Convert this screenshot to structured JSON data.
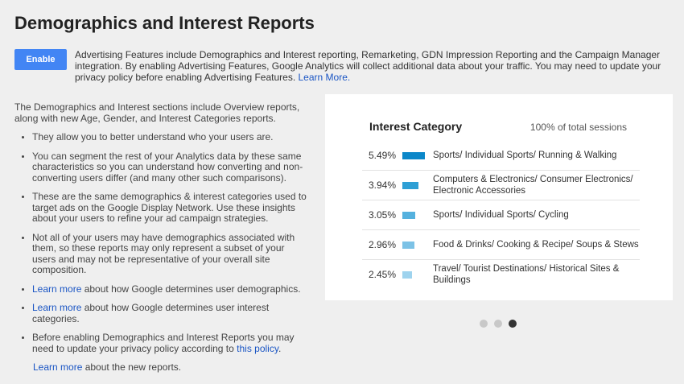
{
  "page": {
    "title": "Demographics and Interest Reports"
  },
  "enable_button": "Enable",
  "intro": {
    "text": "Advertising Features include Demographics and Interest reporting, Remarketing, GDN Impression Reporting and the Campaign Manager integration. By enabling Advertising Features, Google Analytics will collect additional data about your traffic. You may need to update your privacy policy before enabling Advertising Features.",
    "link": "Learn More."
  },
  "description": {
    "lead": "The Demographics and Interest sections include Overview reports, along with new Age, Gender, and Interest Categories reports.",
    "bullets": [
      {
        "text": "They allow you to better understand who your users are."
      },
      {
        "text": "You can segment the rest of your Analytics data by these same characteristics so you can understand how converting and non-converting users differ (and many other such comparisons)."
      },
      {
        "text": "These are the same demographics & interest categories used to target ads on the Google Display Network. Use these insights about your users to refine your ad campaign strategies."
      },
      {
        "text": "Not all of your users may have demographics associated with them, so these reports may only represent a subset of your users and may not be representative of your overall site composition."
      },
      {
        "link": "Learn more",
        "text": " about how Google determines user demographics."
      },
      {
        "link": "Learn more",
        "text": " about how Google determines user interest categories."
      },
      {
        "text": "Before enabling Demographics and Interest Reports you may need to update your privacy policy according to ",
        "link": "this policy",
        "suffix": "."
      }
    ],
    "footer_link": "Learn more",
    "footer_text": " about the new reports."
  },
  "panel": {
    "title": "Interest Category",
    "subtitle": "100% of total sessions",
    "rows": [
      {
        "pct": "5.49%",
        "value": 5.49,
        "label": "Sports/ Individual Sports/ Running & Walking",
        "color": "#0b87c9"
      },
      {
        "pct": "3.94%",
        "value": 3.94,
        "label": "Computers & Electronics/ Consumer Electronics/ Electronic Accessories",
        "color": "#2e9fd5"
      },
      {
        "pct": "3.05%",
        "value": 3.05,
        "label": "Sports/ Individual Sports/ Cycling",
        "color": "#55b1de"
      },
      {
        "pct": "2.96%",
        "value": 2.96,
        "label": "Food & Drinks/ Cooking & Recipe/ Soups & Stews",
        "color": "#7cc2e6"
      },
      {
        "pct": "2.45%",
        "value": 2.45,
        "label": "Travel/ Tourist Destinations/ Historical Sites & Buildings",
        "color": "#9ed3ee"
      }
    ]
  },
  "carousel": {
    "count": 3,
    "active_index": 2
  }
}
